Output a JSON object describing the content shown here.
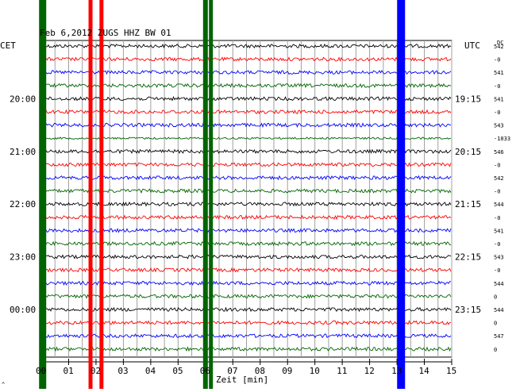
{
  "chart_data": {
    "type": "line",
    "title": "Feb 6,2012   ZUGS HHZ BW 01",
    "left_timezone": "CET",
    "right_timezone": "UTC",
    "right_header": "DC",
    "xlabel": "Zeit [min]",
    "xlim": [
      0,
      15
    ],
    "x_ticks": [
      "00",
      "01",
      "02",
      "03",
      "04",
      "05",
      "06",
      "07",
      "08",
      "09",
      "10",
      "11",
      "12",
      "13",
      "14",
      "15"
    ],
    "left_time_labels": [
      "20:00",
      "21:00",
      "22:00",
      "23:00",
      "00:00"
    ],
    "right_time_labels": [
      "19:15",
      "20:15",
      "21:15",
      "22:15",
      "23:15"
    ],
    "dc_offsets": [
      "542",
      "-0",
      "541",
      "-0",
      "541",
      "-0",
      "543",
      "-1033",
      "546",
      "-0",
      "542",
      "-0",
      "544",
      "-0",
      "541",
      "-0",
      "543",
      "-0",
      "544",
      "0",
      "544",
      "0",
      "547",
      "0"
    ],
    "trace_colors": [
      "#000000",
      "#ff0000",
      "#0000ff",
      "#006400"
    ],
    "traces": 24,
    "footer_mark": "^"
  }
}
